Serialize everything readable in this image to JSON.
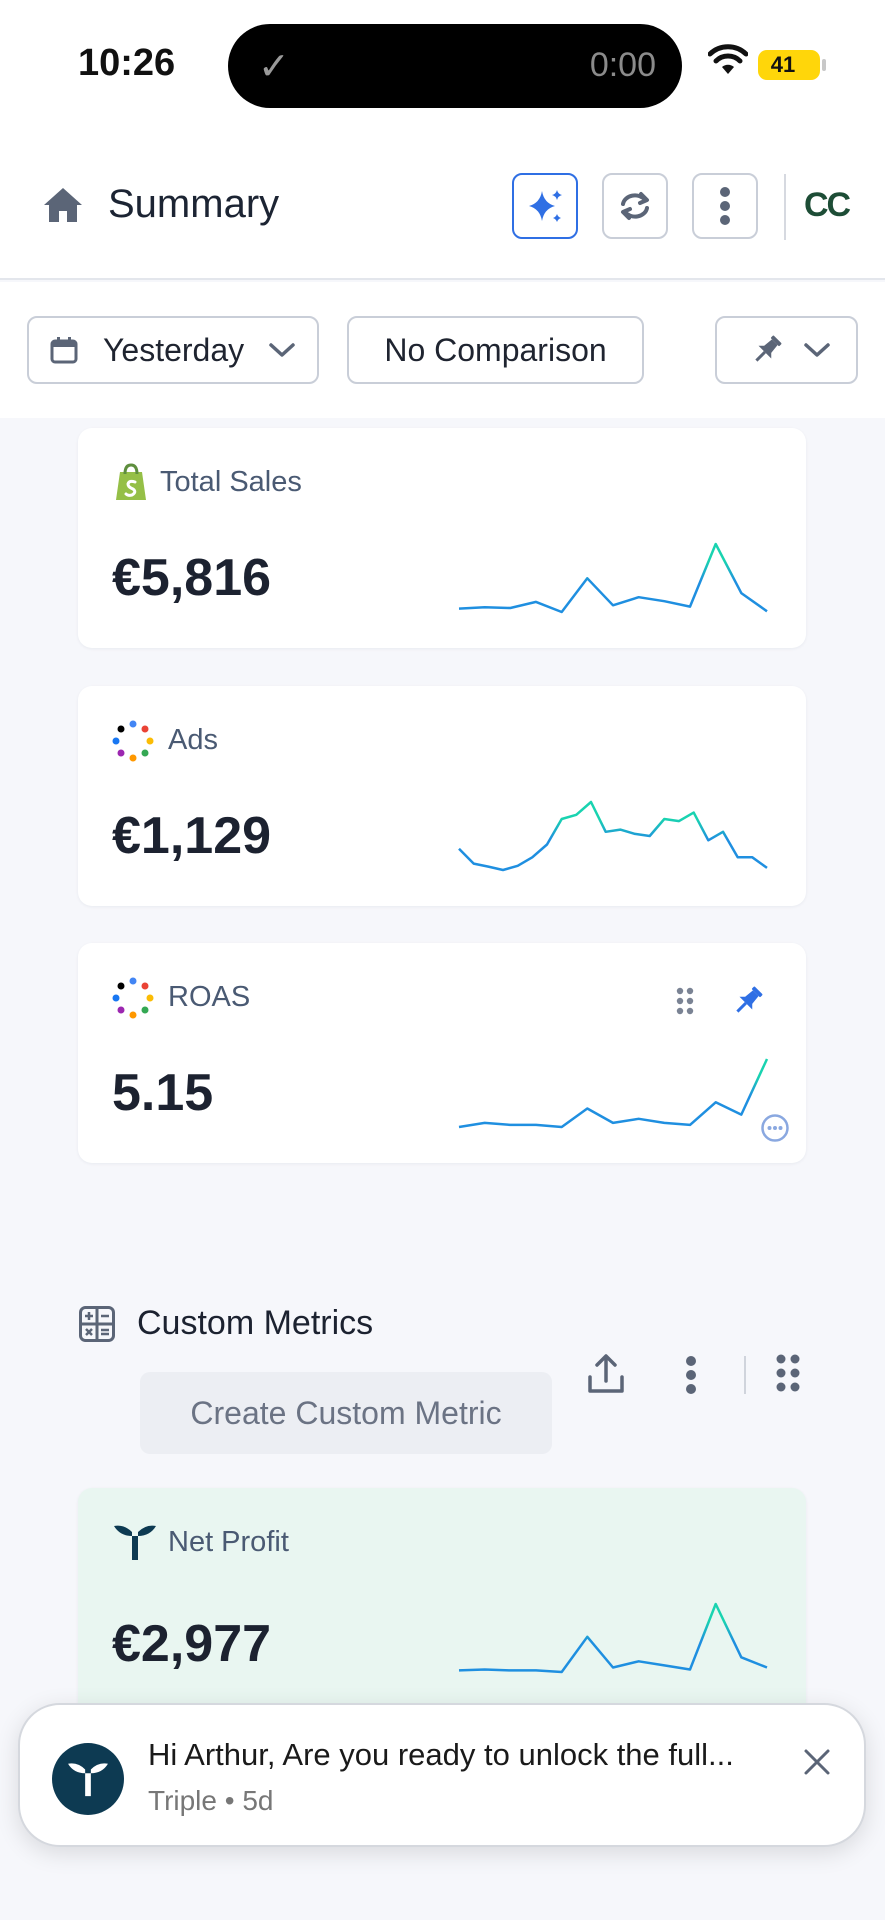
{
  "status_bar": {
    "time": "10:26",
    "timer": "0:00",
    "battery": "41"
  },
  "header": {
    "title": "Summary",
    "brand": "CC"
  },
  "filters": {
    "date": "Yesterday",
    "comparison": "No Comparison"
  },
  "cards": [
    {
      "label": "Total Sales",
      "value": "€5,816",
      "trend": [
        2,
        2.2,
        2.1,
        3,
        1.5,
        6.5,
        2.5,
        3.7,
        3.1,
        2.3,
        11.6,
        4.3,
        1.6
      ]
    },
    {
      "label": "Ads",
      "value": "€1,129",
      "trend": [
        6,
        2.5,
        1.8,
        1,
        2,
        4,
        7,
        13,
        14,
        17,
        10,
        10.5,
        9.5,
        9,
        13,
        12.5,
        14.5,
        8,
        10,
        4,
        4,
        1.5
      ]
    },
    {
      "label": "ROAS",
      "value": "5.15",
      "trend": [
        1.5,
        2.5,
        2,
        2,
        1.5,
        6,
        2.5,
        3.5,
        2.5,
        2,
        7.5,
        4.5,
        18
      ]
    },
    {
      "label": "Net Profit",
      "value": "€2,977",
      "trend": [
        2.8,
        3,
        2.8,
        2.8,
        2.4,
        11,
        3.5,
        5,
        4,
        3,
        19,
        6,
        3.5
      ]
    }
  ],
  "custom_metrics": {
    "title": "Custom Metrics",
    "create_label": "Create Custom Metric"
  },
  "notification": {
    "message": "Hi Arthur, Are you ready to unlock the full...",
    "meta": "Triple • 5d"
  },
  "colors": {
    "accent": "#2f6fe4",
    "spark_blue": "#1f8fe0",
    "spark_teal": "#19d3b0",
    "net_profit_bg": "#e9f6f1"
  }
}
